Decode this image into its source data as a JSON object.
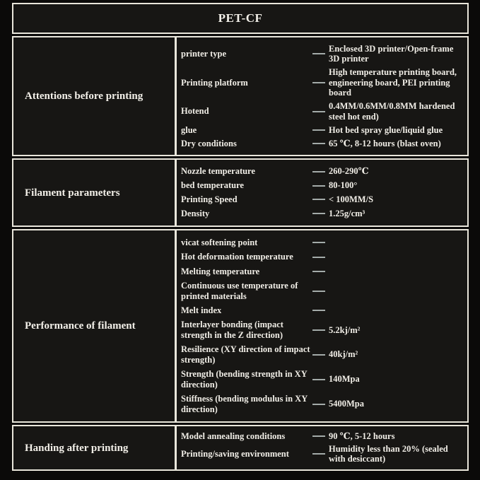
{
  "header": {
    "title": "PET-CF"
  },
  "colors": {
    "background": "#0b0a09",
    "cell_background": "#171614",
    "border": "#e9e6db",
    "text": "#f1eee7",
    "dash": "#a4aba9"
  },
  "sections": [
    {
      "title": "Attentions before printing",
      "rows": [
        {
          "label": "printer type",
          "value": "Enclosed 3D printer/Open-frame 3D printer"
        },
        {
          "label": "Printing platform",
          "value": "High temperature printing board, engineering board, PEI printing board"
        },
        {
          "label": "Hotend",
          "value": "0.4MM/0.6MM/0.8MM hardened steel hot end)"
        },
        {
          "label": "glue",
          "value": "Hot bed spray glue/liquid glue"
        },
        {
          "label": "Dry conditions",
          "value": "65 ℃, 8-12 hours (blast oven)"
        }
      ]
    },
    {
      "title": "Filament parameters",
      "rows": [
        {
          "label": "Nozzle temperature",
          "value": "260-290℃"
        },
        {
          "label": "bed temperature",
          "value": "80-100°"
        },
        {
          "label": "Printing Speed",
          "value": "< 100MM/S"
        },
        {
          "label": "Density",
          "value": "1.25g/cm³"
        }
      ]
    },
    {
      "title": "Performance of filament",
      "rows": [
        {
          "label": "vicat softening point",
          "value": ""
        },
        {
          "label": "Hot deformation temperature",
          "value": ""
        },
        {
          "label": "Melting temperature",
          "value": ""
        },
        {
          "label": "Continuous use temperature of printed materials",
          "value": ""
        },
        {
          "label": "Melt index",
          "value": ""
        },
        {
          "label": "Interlayer bonding (impact strength in the Z direction)",
          "value": "5.2kj/m²"
        },
        {
          "label": "Resilience (XY direction of impact strength)",
          "value": "40kj/m²"
        },
        {
          "label": "Strength (bending strength in XY direction)",
          "value": "140Mpa"
        },
        {
          "label": "Stiffness (bending modulus in XY direction)",
          "value": "5400Mpa"
        }
      ]
    },
    {
      "title": "Handing after printing",
      "rows": [
        {
          "label": "Model annealing conditions",
          "value": "90 ℃, 5-12 hours"
        },
        {
          "label": "Printing/saving environment",
          "value": "Humidity less than 20% (sealed with desiccant)"
        }
      ]
    }
  ]
}
